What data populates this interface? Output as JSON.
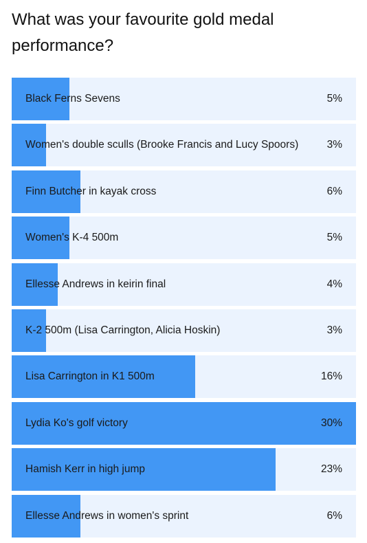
{
  "poll": {
    "title": "What was your favourite gold medal performance?"
  },
  "colors": {
    "bar_fill": "#4297f4",
    "bar_track": "#ebf3fe"
  },
  "chart_data": {
    "type": "bar",
    "orientation": "horizontal",
    "categories": [
      "Black Ferns Sevens",
      "Women's double sculls (Brooke Francis and Lucy Spoors)",
      "Finn Butcher in kayak cross",
      "Women's K-4 500m",
      "Ellesse Andrews in keirin final",
      "K-2 500m (Lisa Carrington, Alicia Hoskin)",
      "Lisa Carrington in K1 500m",
      "Lydia Ko's golf victory",
      "Hamish Kerr in high jump",
      "Ellesse Andrews in women's sprint"
    ],
    "values": [
      5,
      3,
      6,
      5,
      4,
      3,
      16,
      30,
      23,
      6
    ],
    "value_labels": [
      "5%",
      "3%",
      "6%",
      "5%",
      "4%",
      "3%",
      "16%",
      "30%",
      "23%",
      "6%"
    ],
    "title": "What was your favourite gold medal performance?",
    "xlim": [
      0,
      30
    ]
  }
}
